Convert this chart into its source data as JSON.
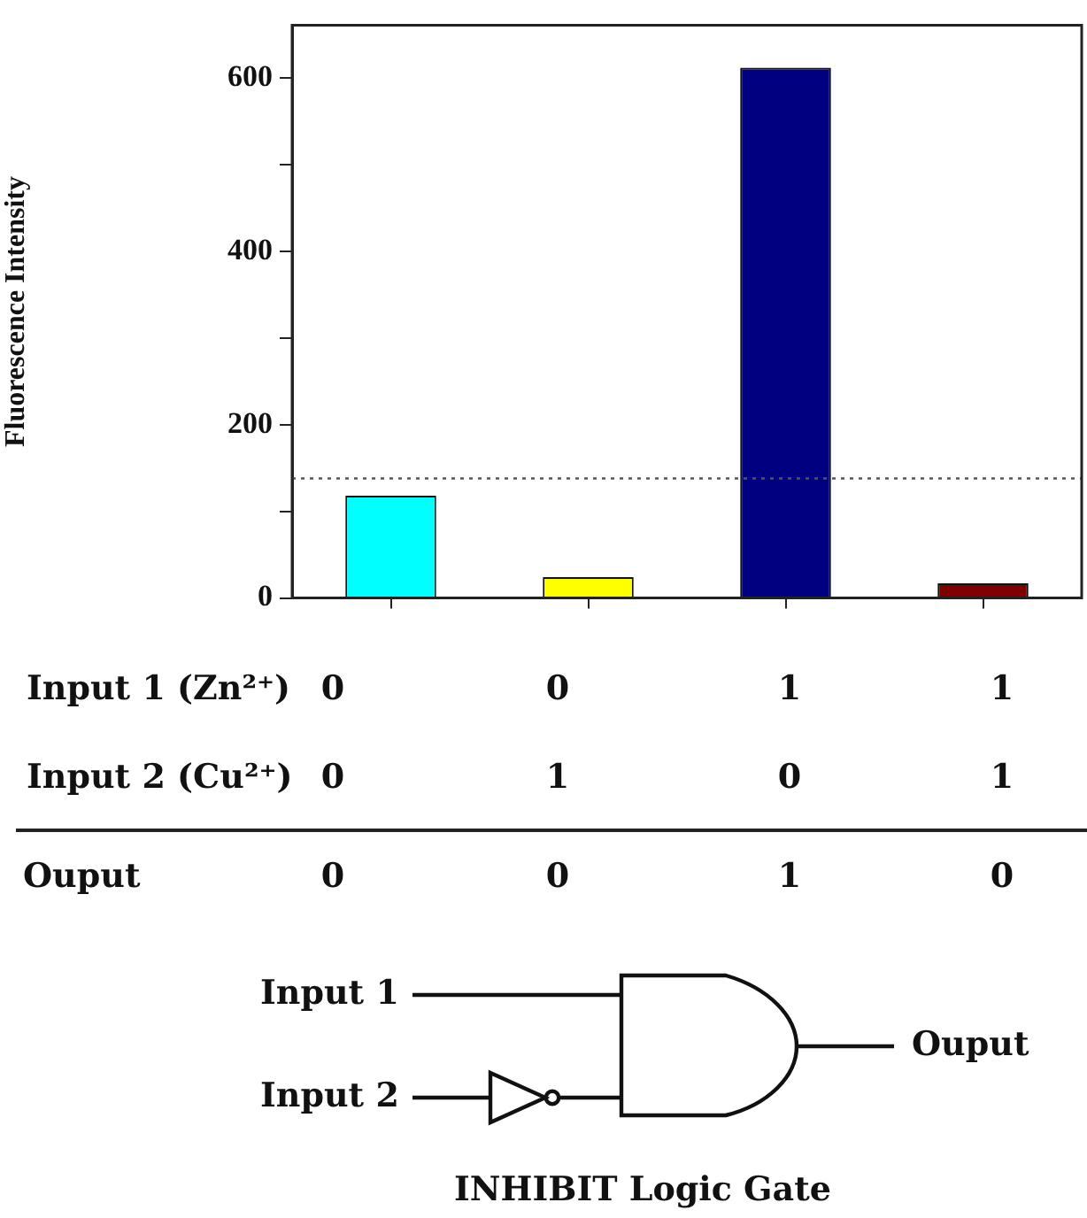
{
  "chart_data": [
    {
      "type": "bar",
      "ylabel": "Fluorescence Intensity",
      "categories": [
        null,
        null,
        null,
        null
      ],
      "values": [
        118,
        24,
        612,
        17
      ],
      "colors": [
        "#00ffff",
        "#ffff00",
        "#000080",
        "#800000"
      ],
      "ylim": [
        0,
        661
      ],
      "yticks": [
        0,
        {
          "value": 100,
          "label": null
        },
        200,
        {
          "value": 300,
          "label": null
        },
        400,
        {
          "value": 500,
          "label": null
        },
        600
      ],
      "ref_lines": [
        {
          "axis": "y",
          "value": 138,
          "color": "#555555",
          "line_style": "dotted"
        }
      ],
      "grid": false,
      "legend": false
    },
    {
      "type": "other",
      "annotations": [
        "Input 1 (Zn²⁺)",
        "0",
        "0",
        "1",
        "1",
        "Input 2 (Cu²⁺)",
        "0",
        "1",
        "0",
        "1",
        "Ouput",
        "0",
        "0",
        "1",
        "0"
      ]
    },
    {
      "type": "other",
      "title": "INHIBIT Logic Gate",
      "annotations": [
        "Input 1",
        "Input 2",
        "Ouput"
      ]
    }
  ]
}
